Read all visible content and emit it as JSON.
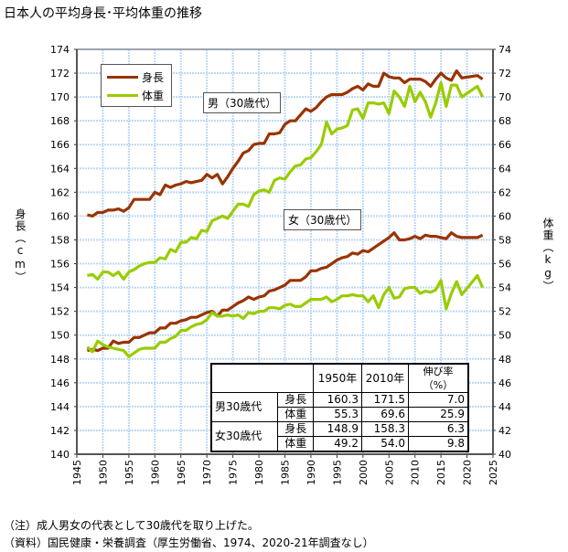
{
  "chart_data": {
    "type": "line",
    "title": "日本人の平均身長･平均体重の推移",
    "ylabel_left": "身長（cm）",
    "ylabel_right": "体重（kg）",
    "xlim": [
      1945,
      2025
    ],
    "ylim_left": [
      140,
      174
    ],
    "ylim_right": [
      40,
      74
    ],
    "x_ticks": [
      1945,
      1950,
      1955,
      1960,
      1965,
      1970,
      1975,
      1980,
      1985,
      1990,
      1995,
      2000,
      2005,
      2010,
      2015,
      2020,
      2025
    ],
    "y_ticks_left": [
      140,
      142,
      144,
      146,
      148,
      150,
      152,
      154,
      156,
      158,
      160,
      162,
      164,
      166,
      168,
      170,
      172,
      174
    ],
    "y_ticks_right": [
      40,
      42,
      44,
      46,
      48,
      50,
      52,
      54,
      56,
      58,
      60,
      62,
      64,
      66,
      68,
      70,
      72,
      74
    ],
    "grid": true,
    "legend": {
      "placement": "top-left",
      "entries": [
        {
          "label": "身長",
          "color": "#993300"
        },
        {
          "label": "体重",
          "color": "#99cc00"
        }
      ]
    },
    "annotations": {
      "male": "男（30歳代）",
      "female": "女（30歳代）"
    },
    "years": [
      1947,
      1948,
      1949,
      1950,
      1951,
      1952,
      1953,
      1954,
      1955,
      1956,
      1957,
      1958,
      1959,
      1960,
      1961,
      1962,
      1963,
      1964,
      1965,
      1966,
      1967,
      1968,
      1969,
      1970,
      1971,
      1972,
      1973,
      1974,
      1975,
      1976,
      1977,
      1978,
      1979,
      1980,
      1981,
      1982,
      1983,
      1984,
      1985,
      1986,
      1987,
      1988,
      1989,
      1990,
      1991,
      1992,
      1993,
      1994,
      1995,
      1996,
      1997,
      1998,
      1999,
      2000,
      2001,
      2002,
      2003,
      2004,
      2005,
      2006,
      2007,
      2008,
      2009,
      2010,
      2011,
      2012,
      2013,
      2014,
      2015,
      2016,
      2017,
      2018,
      2019,
      2022,
      2023
    ],
    "series": [
      {
        "group": "男（30歳代）",
        "measure": "身長",
        "axis": "left",
        "color": "#993300",
        "values": [
          160.1,
          160.0,
          160.3,
          160.3,
          160.5,
          160.5,
          160.6,
          160.4,
          160.7,
          161.4,
          161.4,
          161.4,
          161.4,
          162.0,
          161.8,
          162.6,
          162.4,
          162.6,
          162.7,
          162.9,
          162.8,
          162.9,
          163.0,
          163.5,
          163.2,
          163.5,
          162.7,
          163.3,
          164.0,
          164.6,
          165.3,
          165.5,
          166.0,
          166.1,
          166.1,
          166.9,
          166.9,
          167.0,
          167.7,
          168.0,
          168.0,
          168.5,
          169.0,
          168.8,
          169.1,
          169.6,
          170.0,
          170.2,
          170.2,
          170.2,
          170.4,
          170.7,
          170.9,
          170.6,
          171.1,
          170.9,
          170.9,
          172.0,
          171.7,
          171.6,
          171.6,
          171.2,
          171.5,
          171.5,
          171.5,
          171.3,
          170.9,
          171.5,
          172.0,
          171.6,
          171.4,
          172.2,
          171.6,
          171.8,
          171.5
        ]
      },
      {
        "group": "男（30歳代）",
        "measure": "体重",
        "axis": "right",
        "color": "#99cc00",
        "values": [
          55.0,
          55.1,
          54.7,
          55.3,
          55.3,
          55.0,
          55.3,
          54.7,
          55.3,
          55.5,
          55.8,
          56.0,
          56.1,
          56.1,
          56.5,
          56.4,
          57.2,
          57.0,
          57.8,
          57.8,
          58.2,
          58.1,
          58.8,
          58.7,
          59.6,
          59.8,
          60.0,
          59.8,
          60.4,
          61.0,
          61.0,
          60.8,
          61.8,
          62.1,
          62.2,
          62.0,
          63.0,
          63.2,
          63.1,
          63.7,
          64.2,
          64.3,
          64.8,
          64.9,
          65.4,
          66.0,
          67.9,
          66.9,
          67.3,
          67.4,
          67.6,
          68.9,
          69.0,
          68.2,
          69.5,
          69.5,
          69.4,
          69.5,
          68.6,
          70.5,
          70.0,
          69.2,
          70.9,
          69.6,
          70.4,
          69.6,
          68.3,
          69.5,
          71.2,
          69.2,
          71.0,
          71.0,
          70.0,
          70.9,
          70.0
        ]
      },
      {
        "group": "女（30歳代）",
        "measure": "身長",
        "axis": "left",
        "color": "#993300",
        "values": [
          148.7,
          148.8,
          148.7,
          148.9,
          148.9,
          149.5,
          149.3,
          149.4,
          149.4,
          149.8,
          149.8,
          150.0,
          150.2,
          150.2,
          150.6,
          150.6,
          151.0,
          151.0,
          151.2,
          151.3,
          151.5,
          151.5,
          151.7,
          151.9,
          152.0,
          151.6,
          152.1,
          152.1,
          152.4,
          152.7,
          152.9,
          153.2,
          153.0,
          153.2,
          153.3,
          153.7,
          153.8,
          154.0,
          154.2,
          154.6,
          154.6,
          154.6,
          154.9,
          155.4,
          155.4,
          155.6,
          155.7,
          156.0,
          156.3,
          156.5,
          156.6,
          156.9,
          156.8,
          157.1,
          157.0,
          157.3,
          157.6,
          157.9,
          158.2,
          158.6,
          158.0,
          158.0,
          158.1,
          158.3,
          158.1,
          158.4,
          158.3,
          158.3,
          158.2,
          158.1,
          158.6,
          158.3,
          158.2,
          158.2,
          158.4
        ]
      },
      {
        "group": "女（30歳代）",
        "measure": "体重",
        "axis": "right",
        "color": "#99cc00",
        "values": [
          49.0,
          48.6,
          49.5,
          49.2,
          49.0,
          48.9,
          48.8,
          48.7,
          48.2,
          48.5,
          48.8,
          48.9,
          48.9,
          48.9,
          49.4,
          49.4,
          49.7,
          49.9,
          50.4,
          50.4,
          50.7,
          50.9,
          51.0,
          51.3,
          51.9,
          51.6,
          51.6,
          51.7,
          51.6,
          51.7,
          51.4,
          51.9,
          51.8,
          52.0,
          52.0,
          52.3,
          52.3,
          52.2,
          52.5,
          52.6,
          52.4,
          52.4,
          52.7,
          53.0,
          53.0,
          53.0,
          53.2,
          52.8,
          53.0,
          53.3,
          53.3,
          53.4,
          53.3,
          53.3,
          52.8,
          53.3,
          52.3,
          53.4,
          54.0,
          53.1,
          53.2,
          53.9,
          54.0,
          54.0,
          53.5,
          53.7,
          53.6,
          53.8,
          54.6,
          52.2,
          53.5,
          54.5,
          53.4,
          55.0,
          54.0
        ]
      }
    ],
    "table": {
      "headers": [
        "",
        "",
        "1950年",
        "2010年",
        "伸び率（%）"
      ],
      "rows": [
        {
          "group": "男30歳代",
          "item": "身長",
          "v1950": "160.3",
          "v2010": "171.5",
          "rate": "7.0"
        },
        {
          "group": "",
          "item": "体重",
          "v1950": "55.3",
          "v2010": "69.6",
          "rate": "25.9"
        },
        {
          "group": "女30歳代",
          "item": "身長",
          "v1950": "148.9",
          "v2010": "158.3",
          "rate": "6.3"
        },
        {
          "group": "",
          "item": "体重",
          "v1950": "49.2",
          "v2010": "54.0",
          "rate": "9.8"
        }
      ]
    }
  },
  "notes": {
    "note": "（注）成人男女の代表として30歳代を取り上げた。",
    "source": "（資料）国民健康・栄養調査（厚生労働省、1974、2020-21年調査なし）"
  }
}
